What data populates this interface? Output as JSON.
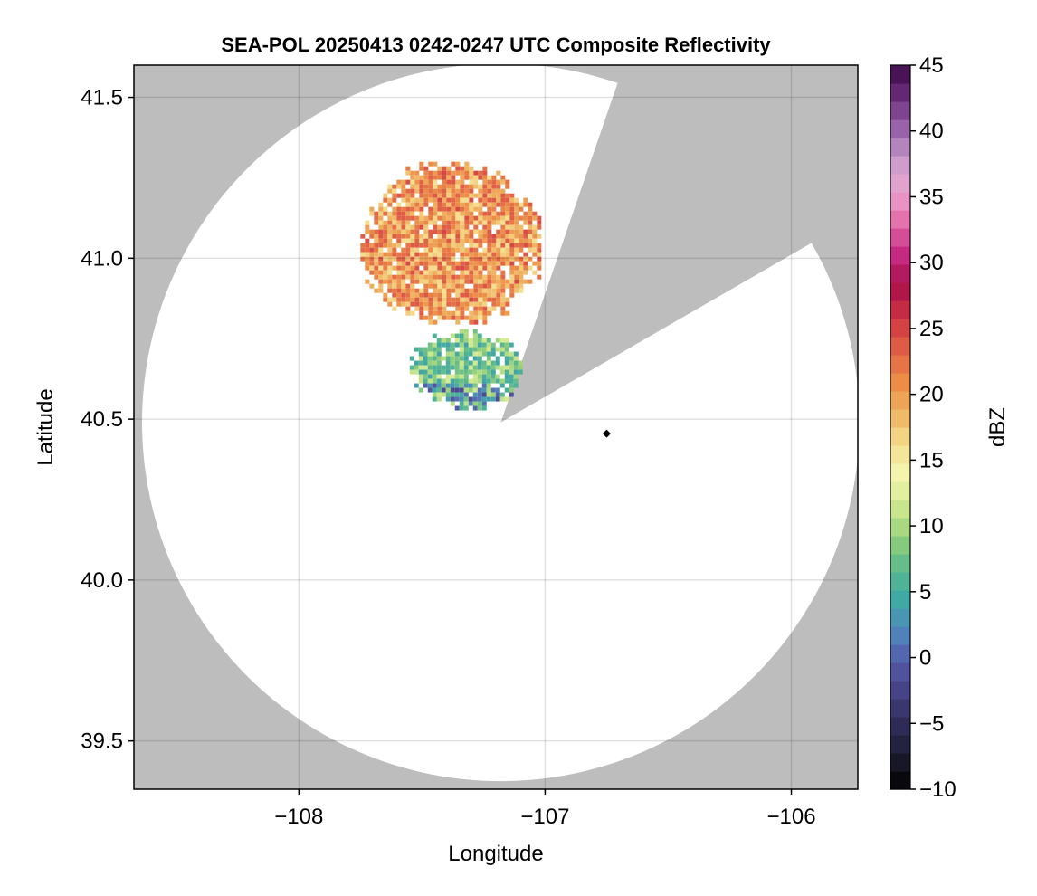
{
  "chart_data": {
    "type": "heatmap",
    "title": "SEA-POL 20250413 0242-0247 UTC Composite Reflectivity",
    "xlabel": "Longitude",
    "ylabel": "Latitude",
    "xlim": [
      -108.67,
      -105.73
    ],
    "ylim": [
      39.35,
      41.6
    ],
    "x_ticks": [
      -108,
      -107,
      -106
    ],
    "x_tick_labels": [
      "−108",
      "−107",
      "−106"
    ],
    "y_ticks": [
      39.5,
      40.0,
      40.5,
      41.0,
      41.5
    ],
    "y_tick_labels": [
      "39.5",
      "40.0",
      "40.5",
      "41.0",
      "41.5"
    ],
    "grid": true,
    "background_color": "#bdbdbd",
    "coverage_color": "#ffffff",
    "radar_location": {
      "lon": -106.75,
      "lat": 40.455,
      "marker": "diamond",
      "color": "#000000"
    },
    "coverage": {
      "center_lon": -107.18,
      "center_lat": 40.49,
      "radius_deg_lat": 1.115,
      "blocked_sectors_deg_from_north": [
        [
          19,
          60
        ]
      ]
    },
    "echo_regions": [
      {
        "name": "northern cell",
        "lon_range": [
          -107.75,
          -107.03
        ],
        "lat_range": [
          40.8,
          41.3
        ],
        "typical_dBZ": 20,
        "peak_dBZ": 25
      },
      {
        "name": "southern cell",
        "lon_range": [
          -107.55,
          -107.1
        ],
        "lat_range": [
          40.54,
          40.78
        ],
        "typical_dBZ": 8,
        "min_dBZ": -2,
        "peak_dBZ": 14
      }
    ],
    "colorbar": {
      "label": "dBZ",
      "min": -10,
      "max": 45,
      "levels": 40,
      "ticks": [
        -10,
        -5,
        0,
        5,
        10,
        15,
        20,
        25,
        30,
        35,
        40,
        45
      ],
      "tick_labels": [
        "−10",
        "−5",
        "0",
        "5",
        "10",
        "15",
        "20",
        "25",
        "30",
        "35",
        "40",
        "45"
      ],
      "colormap": [
        "#000000",
        "#1b1b2e",
        "#2e2b55",
        "#43407f",
        "#5559a8",
        "#4f86bd",
        "#3fa8a5",
        "#5ab88d",
        "#94d07a",
        "#cfe88e",
        "#f5f6ae",
        "#f4dd8c",
        "#efb25f",
        "#ec8a45",
        "#e05f46",
        "#cc3541",
        "#a8104a",
        "#c72a82",
        "#e36ca9",
        "#eaa5cf",
        "#c89ccb",
        "#9762a9",
        "#6b2c7b",
        "#3b0a47"
      ]
    }
  }
}
